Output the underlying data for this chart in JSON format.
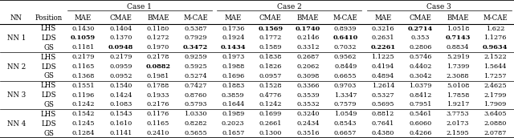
{
  "col_headers_row2": [
    "NN",
    "Position",
    "MAE",
    "CMAE",
    "BMAE",
    "M-CAE",
    "MAE",
    "CMAE",
    "BMAE",
    "M-CAE",
    "MAE",
    "CMAE",
    "BMAE",
    "M-CAE"
  ],
  "nn_labels": [
    "NN 1",
    "NN 2",
    "NN 3",
    "NN 4"
  ],
  "positions": [
    "LHS",
    "LDS",
    "GS"
  ],
  "data": [
    [
      [
        "0.1430",
        "0.1404",
        "0.1180",
        "0.5387",
        "0.1736",
        "0.1569",
        "0.1740",
        "0.8939",
        "0.3216",
        "0.2714",
        "1.0518",
        "1.622"
      ],
      [
        "0.1059",
        "0.1370",
        "0.1272",
        "0.7929",
        "0.1924",
        "0.1772",
        "0.2146",
        "0.6410",
        "0.2631",
        "0.353",
        "0.7143",
        "1.1276"
      ],
      [
        "0.1181",
        "0.0948",
        "0.1970",
        "0.3472",
        "0.1434",
        "0.1589",
        "0.3312",
        "0.7032",
        "0.2261",
        "0.2806",
        "0.8834",
        "0.9634"
      ]
    ],
    [
      [
        "0.2179",
        "0.2179",
        "0.2178",
        "0.9259",
        "0.1973",
        "0.1838",
        "0.2687",
        "0.9562",
        "1.1225",
        "0.5746",
        "5.2919",
        "2.1522"
      ],
      [
        "0.1165",
        "0.0959",
        "0.0882",
        "0.5925",
        "0.1988",
        "0.1826",
        "0.2062",
        "0.8449",
        "0.4194",
        "0.4402",
        "1.7399",
        "1.5644"
      ],
      [
        "0.1368",
        "0.0952",
        "0.1981",
        "0.5274",
        "0.1696",
        "0.0957",
        "0.3098",
        "0.6655",
        "0.4894",
        "0.3042",
        "2.3088",
        "1.7257"
      ]
    ],
    [
      [
        "0.1551",
        "0.1540",
        "0.1788",
        "0.7427",
        "0.1883",
        "0.1528",
        "0.3366",
        "0.9703",
        "1.2614",
        "1.0379",
        "5.0108",
        "2.4625"
      ],
      [
        "0.1196",
        "0.1424",
        "0.1933",
        "0.8760",
        "0.3859",
        "0.4776",
        "0.3539",
        "1.3347",
        "0.5327",
        "0.8412",
        "1.7858",
        "2.1799"
      ],
      [
        "0.1242",
        "0.1083",
        "0.2176",
        "0.5793",
        "0.1644",
        "0.1242",
        "0.3532",
        "0.7579",
        "0.5695",
        "0.7951",
        "1.9217",
        "1.7909"
      ]
    ],
    [
      [
        "0.1542",
        "0.1543",
        "0.1176",
        "1.0330",
        "0.1989",
        "0.1699",
        "0.3240",
        "1.0549",
        "0.8812",
        "0.5461",
        "3.7753",
        "3.6405"
      ],
      [
        "0.1245",
        "0.1610",
        "0.1165",
        "0.8282",
        "0.2023",
        "0.2661",
        "0.2434",
        "0.8543",
        "0.7641",
        "0.6060",
        "2.0173",
        "2.0880"
      ],
      [
        "0.1284",
        "0.1141",
        "0.2410",
        "0.5655",
        "0.1657",
        "0.1300",
        "0.3516",
        "0.6657",
        "0.4380",
        "0.4266",
        "2.1595",
        "2.0787"
      ]
    ]
  ],
  "bold": [
    [
      [
        false,
        false,
        false,
        false,
        false,
        true,
        true,
        false,
        false,
        true,
        false,
        false
      ],
      [
        true,
        false,
        false,
        false,
        false,
        false,
        false,
        true,
        false,
        false,
        true,
        false
      ],
      [
        false,
        true,
        false,
        true,
        true,
        false,
        false,
        false,
        true,
        false,
        false,
        true
      ]
    ],
    [
      [
        false,
        false,
        false,
        false,
        false,
        false,
        false,
        false,
        false,
        false,
        false,
        false
      ],
      [
        false,
        false,
        true,
        false,
        false,
        false,
        false,
        false,
        false,
        false,
        false,
        false
      ],
      [
        false,
        false,
        false,
        false,
        false,
        false,
        false,
        false,
        false,
        false,
        false,
        false
      ]
    ],
    [
      [
        false,
        false,
        false,
        false,
        false,
        false,
        false,
        false,
        false,
        false,
        false,
        false
      ],
      [
        false,
        false,
        false,
        false,
        false,
        false,
        false,
        false,
        false,
        false,
        false,
        false
      ],
      [
        false,
        false,
        false,
        false,
        false,
        false,
        false,
        false,
        false,
        false,
        false,
        false
      ]
    ],
    [
      [
        false,
        false,
        false,
        false,
        false,
        false,
        false,
        false,
        false,
        false,
        false,
        false
      ],
      [
        false,
        false,
        false,
        false,
        false,
        false,
        false,
        false,
        false,
        false,
        false,
        false
      ],
      [
        false,
        false,
        false,
        false,
        false,
        false,
        false,
        false,
        false,
        false,
        false,
        false
      ]
    ]
  ],
  "bg_color": "#ffffff",
  "line_color": "#000000"
}
